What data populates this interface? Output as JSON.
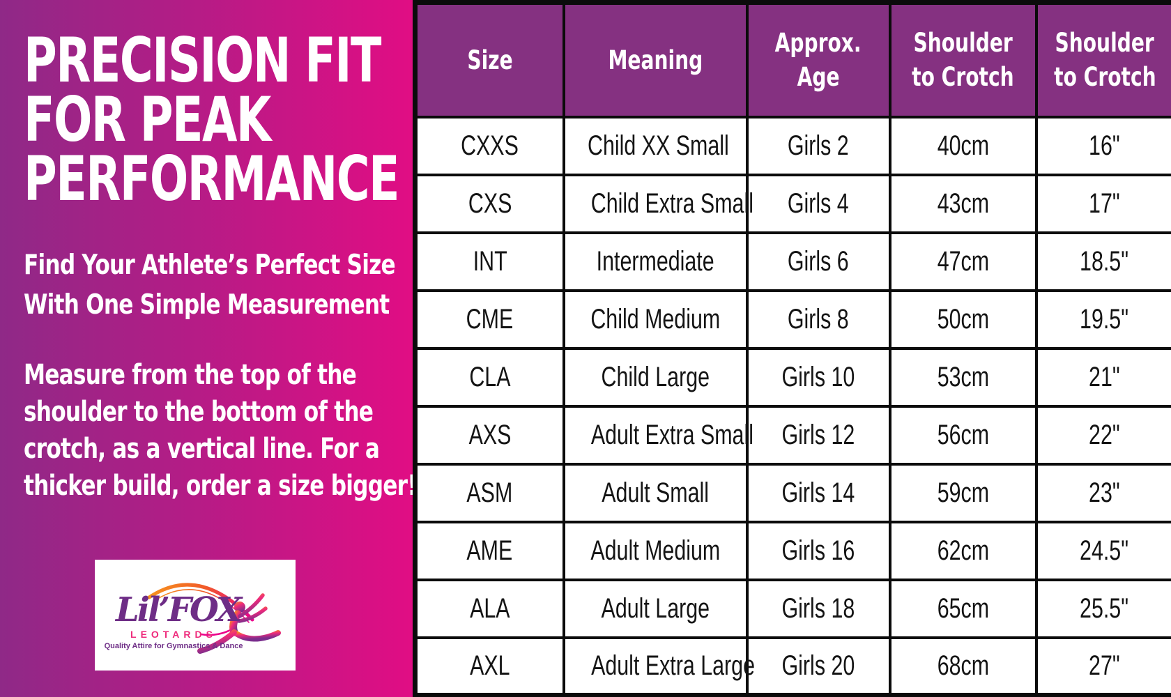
{
  "panel": {
    "headline_lines": [
      "PRECISION FIT",
      "FOR PEAK",
      "PERFORMANCE"
    ],
    "subhead_lines": [
      "Find Your Athlete’s Perfect Size",
      "With One Simple Measurement"
    ],
    "body_lines": [
      "Measure from the top of the",
      "shoulder to the bottom of the",
      "crotch, as a vertical line. For a",
      "thicker build, order a size bigger!"
    ],
    "gradient_from": "#8F2987",
    "gradient_to": "#E10D84",
    "text_color": "#FFFFFF"
  },
  "logo": {
    "brand": "Lil’FOX",
    "wordmark_sub": "LEOTARDS",
    "tagline": "Quality Attire for Gymnastics & Dance",
    "script_color": "#6E2D86",
    "sub_color": "#EE2A7B",
    "arc_color_start": "#F7941D",
    "arc_color_end": "#EC008C",
    "gymnast_color_end": "#7A2E8D"
  },
  "table_style": {
    "header_bg": "#853181",
    "header_text_color": "#FFFFFF",
    "border_color": "#0B0B0B",
    "cell_text_color": "#141414"
  },
  "chart_data": {
    "type": "table",
    "columns": [
      [
        "Size"
      ],
      [
        "Meaning"
      ],
      [
        "Approx.",
        "Age"
      ],
      [
        "Shoulder",
        "to Crotch"
      ],
      [
        "Shoulder",
        "to Crotch"
      ]
    ],
    "rows": [
      [
        "CXXS",
        "Child XX Small",
        "Girls 2",
        "40cm",
        "16\""
      ],
      [
        "CXS",
        "Child Extra Small",
        "Girls 4",
        "43cm",
        "17\""
      ],
      [
        "INT",
        "Intermediate",
        "Girls 6",
        "47cm",
        "18.5\""
      ],
      [
        "CME",
        "Child Medium",
        "Girls 8",
        "50cm",
        "19.5\""
      ],
      [
        "CLA",
        "Child Large",
        "Girls 10",
        "53cm",
        "21\""
      ],
      [
        "AXS",
        "Adult Extra Small",
        "Girls 12",
        "56cm",
        "22\""
      ],
      [
        "ASM",
        "Adult Small",
        "Girls 14",
        "59cm",
        "23\""
      ],
      [
        "AME",
        "Adult Medium",
        "Girls 16",
        "62cm",
        "24.5\""
      ],
      [
        "ALA",
        "Adult Large",
        "Girls 18",
        "65cm",
        "25.5\""
      ],
      [
        "AXL",
        "Adult Extra Large",
        "Girls 20",
        "68cm",
        "27\""
      ]
    ]
  }
}
